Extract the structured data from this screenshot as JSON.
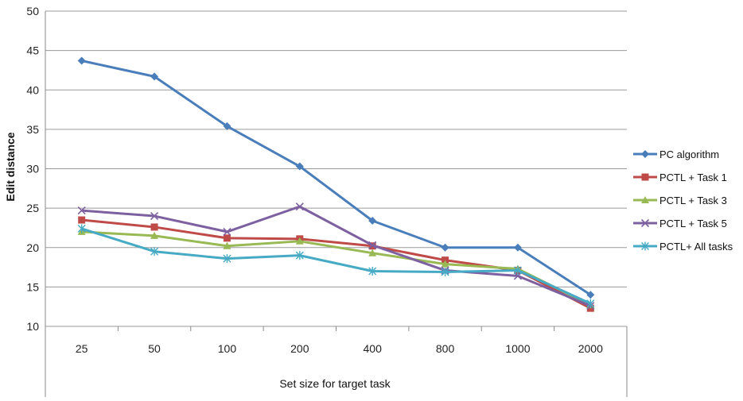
{
  "chart_data": {
    "type": "line",
    "title": "",
    "xlabel": "Set size for target task",
    "ylabel": "Edit distance",
    "categories": [
      "25",
      "50",
      "100",
      "200",
      "400",
      "800",
      "1000",
      "2000"
    ],
    "ylim": [
      10,
      50
    ],
    "yticks": [
      "10",
      "15",
      "20",
      "25",
      "30",
      "35",
      "40",
      "45",
      "50"
    ],
    "grid": "horizontal",
    "legend": "right",
    "series": [
      {
        "name": "PC algorithm",
        "color": "#4a7ebb",
        "marker": "diamond",
        "values": [
          43.7,
          41.7,
          35.4,
          30.3,
          23.4,
          20.0,
          20.0,
          14.0
        ]
      },
      {
        "name": "PCTL + Task 1",
        "color": "#be4b48",
        "marker": "square",
        "values": [
          23.5,
          22.6,
          21.2,
          21.1,
          20.2,
          18.4,
          17.1,
          12.3
        ]
      },
      {
        "name": "PCTL + Task 3",
        "color": "#98b954",
        "marker": "triangle",
        "values": [
          22.0,
          21.5,
          20.2,
          20.8,
          19.3,
          17.9,
          17.3,
          12.7
        ]
      },
      {
        "name": "PCTL + Task 5",
        "color": "#7d60a0",
        "marker": "x",
        "values": [
          24.7,
          24.0,
          22.0,
          25.2,
          20.3,
          17.1,
          16.4,
          12.6
        ]
      },
      {
        "name": "PCTL+ All tasks",
        "color": "#46aac5",
        "marker": "star",
        "values": [
          22.4,
          19.5,
          18.6,
          19.0,
          17.0,
          16.9,
          17.1,
          12.9
        ]
      }
    ]
  }
}
